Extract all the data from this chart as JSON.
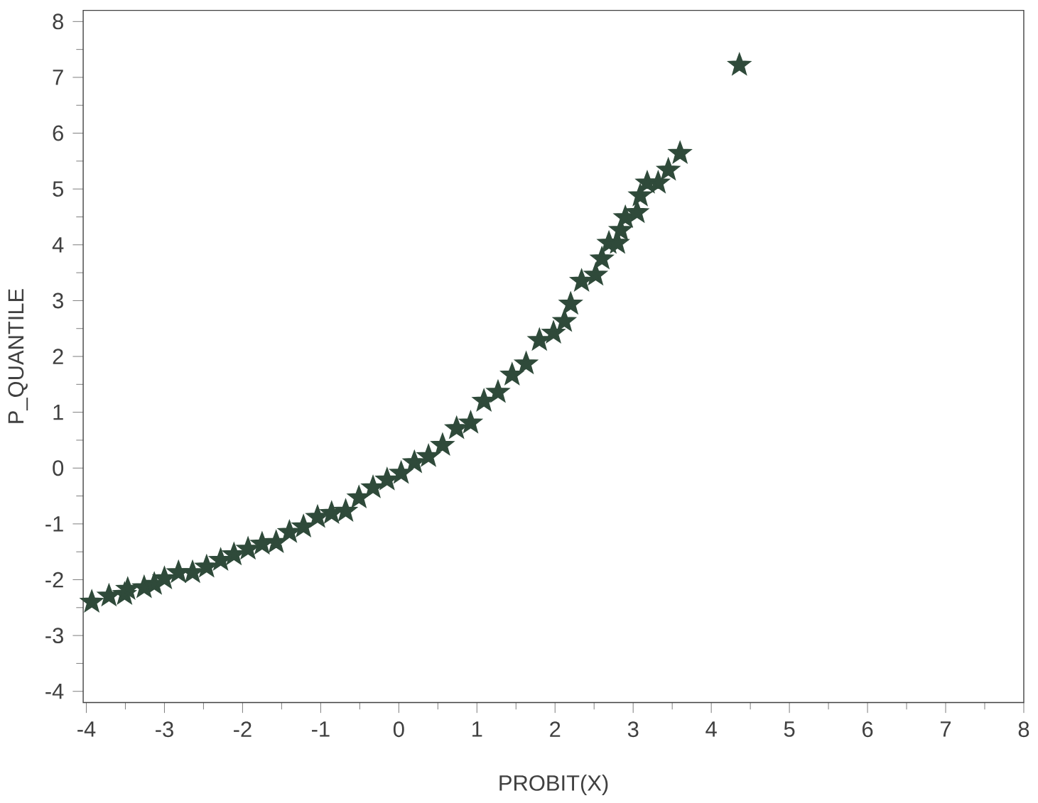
{
  "chart_data": {
    "type": "scatter",
    "xlabel": "PROBIT(X)",
    "ylabel": "P_QUANTILE",
    "marker": "star",
    "grid": false,
    "xlim": [
      -4.04,
      8
    ],
    "ylim": [
      -4.2,
      8.2
    ],
    "xticks": [
      -4,
      -3,
      -2,
      -1,
      0,
      1,
      2,
      3,
      4,
      5,
      6,
      7,
      8
    ],
    "yticks": [
      -4,
      -3,
      -2,
      -1,
      0,
      1,
      2,
      3,
      4,
      5,
      6,
      7,
      8
    ],
    "series": [
      {
        "color": "#2f4a3a",
        "x": [
          -3.93,
          -3.71,
          -3.51,
          -3.47,
          -3.26,
          -3.13,
          -3.0,
          -2.82,
          -2.64,
          -2.46,
          -2.28,
          -2.11,
          -1.93,
          -1.75,
          -1.57,
          -1.4,
          -1.22,
          -1.04,
          -0.86,
          -0.68,
          -0.51,
          -0.33,
          -0.15,
          0.03,
          0.2,
          0.38,
          0.56,
          0.74,
          0.92,
          1.09,
          1.27,
          1.45,
          1.63,
          1.8,
          1.98,
          2.12,
          2.2,
          2.34,
          2.52,
          2.6,
          2.69,
          2.8,
          2.84,
          2.9,
          3.05,
          3.09,
          3.18,
          3.32,
          3.45,
          3.6,
          4.36
        ],
        "values": [
          -2.4,
          -2.29,
          -2.26,
          -2.17,
          -2.14,
          -2.08,
          -1.98,
          -1.87,
          -1.87,
          -1.77,
          -1.65,
          -1.55,
          -1.45,
          -1.36,
          -1.33,
          -1.15,
          -1.05,
          -0.88,
          -0.81,
          -0.77,
          -0.53,
          -0.35,
          -0.21,
          -0.09,
          0.1,
          0.21,
          0.41,
          0.71,
          0.81,
          1.2,
          1.36,
          1.67,
          1.87,
          2.29,
          2.42,
          2.63,
          2.94,
          3.35,
          3.46,
          3.75,
          4.03,
          4.03,
          4.26,
          4.49,
          4.58,
          4.88,
          5.11,
          5.11,
          5.34,
          5.64,
          7.22
        ]
      }
    ]
  }
}
